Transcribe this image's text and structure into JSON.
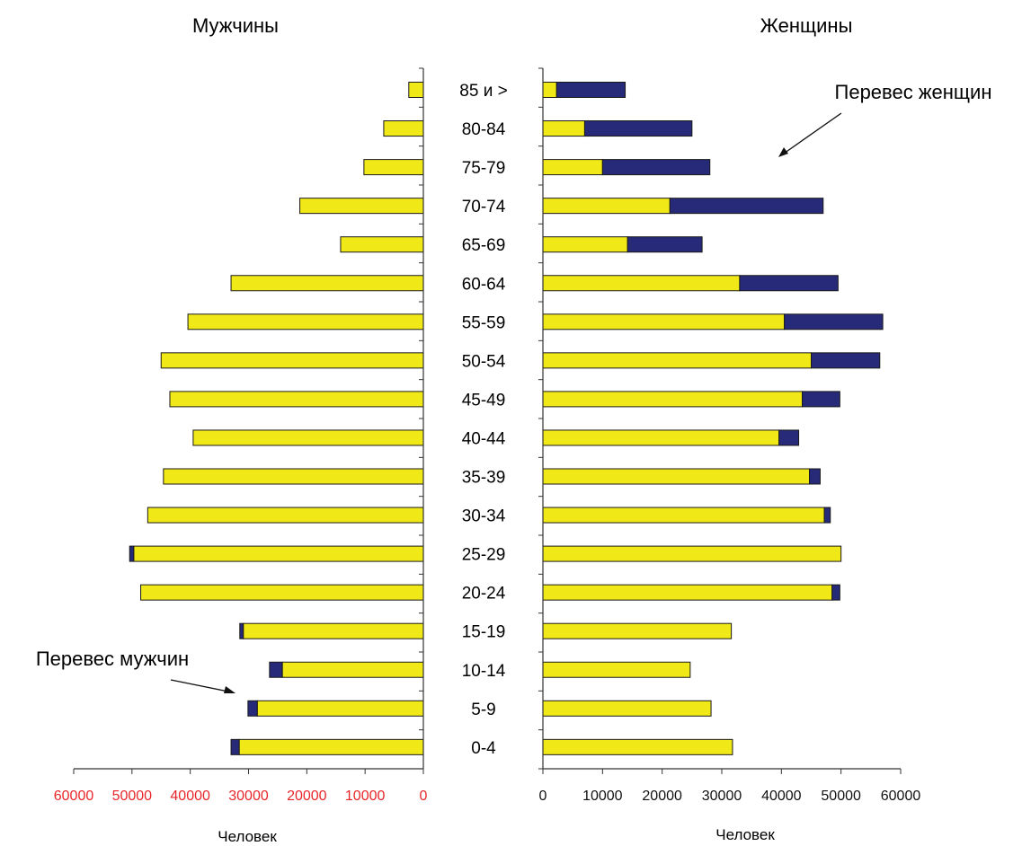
{
  "chart_data": {
    "type": "bar",
    "subtype": "population-pyramid-stacked",
    "left_title": "Мужчины",
    "right_title": "Женщины",
    "xlabel_left": "Человек",
    "xlabel_right": "Человек",
    "annotation_left": "Перевес мужчин",
    "annotation_right": "Перевес женщин",
    "categories": [
      "85 и >",
      "80-84",
      "75-79",
      "70-74",
      "65-69",
      "60-64",
      "55-59",
      "50-54",
      "45-49",
      "40-44",
      "35-39",
      "30-34",
      "25-29",
      "20-24",
      "15-19",
      "10-14",
      "5-9",
      "0-4"
    ],
    "left_ticks": [
      "60000",
      "50000",
      "40000",
      "30000",
      "20000",
      "10000",
      "0"
    ],
    "right_ticks": [
      "0",
      "10000",
      "20000",
      "30000",
      "40000",
      "50000",
      "60000"
    ],
    "left_tick_color": "#e8262a",
    "right_tick_color": "#111111",
    "xlim": [
      0,
      60000
    ],
    "colors": {
      "base": "#f0e817",
      "excess": "#262a78",
      "edge": "#1a1a1a",
      "axis": "#333333"
    },
    "series": [
      {
        "values": [
          2500,
          6800,
          10200,
          21200,
          14200,
          33000,
          40400,
          45000,
          43500,
          39500,
          44600,
          47300,
          49700,
          48500,
          30900,
          24200,
          28500,
          31600
        ]
      },
      {
        "values": [
          0,
          0,
          0,
          0,
          0,
          0,
          0,
          0,
          0,
          0,
          0,
          0,
          700,
          0,
          600,
          2200,
          1600,
          1400
        ]
      },
      {
        "values": [
          2300,
          7000,
          10000,
          21300,
          14200,
          33000,
          40500,
          45000,
          43500,
          39600,
          44700,
          47200,
          50000,
          48500,
          31600,
          24700,
          28200,
          31800
        ]
      },
      {
        "values": [
          11500,
          18000,
          18000,
          25700,
          12500,
          16500,
          16500,
          11500,
          6300,
          3300,
          1800,
          1000,
          0,
          1300,
          0,
          0,
          0,
          0
        ]
      }
    ]
  }
}
